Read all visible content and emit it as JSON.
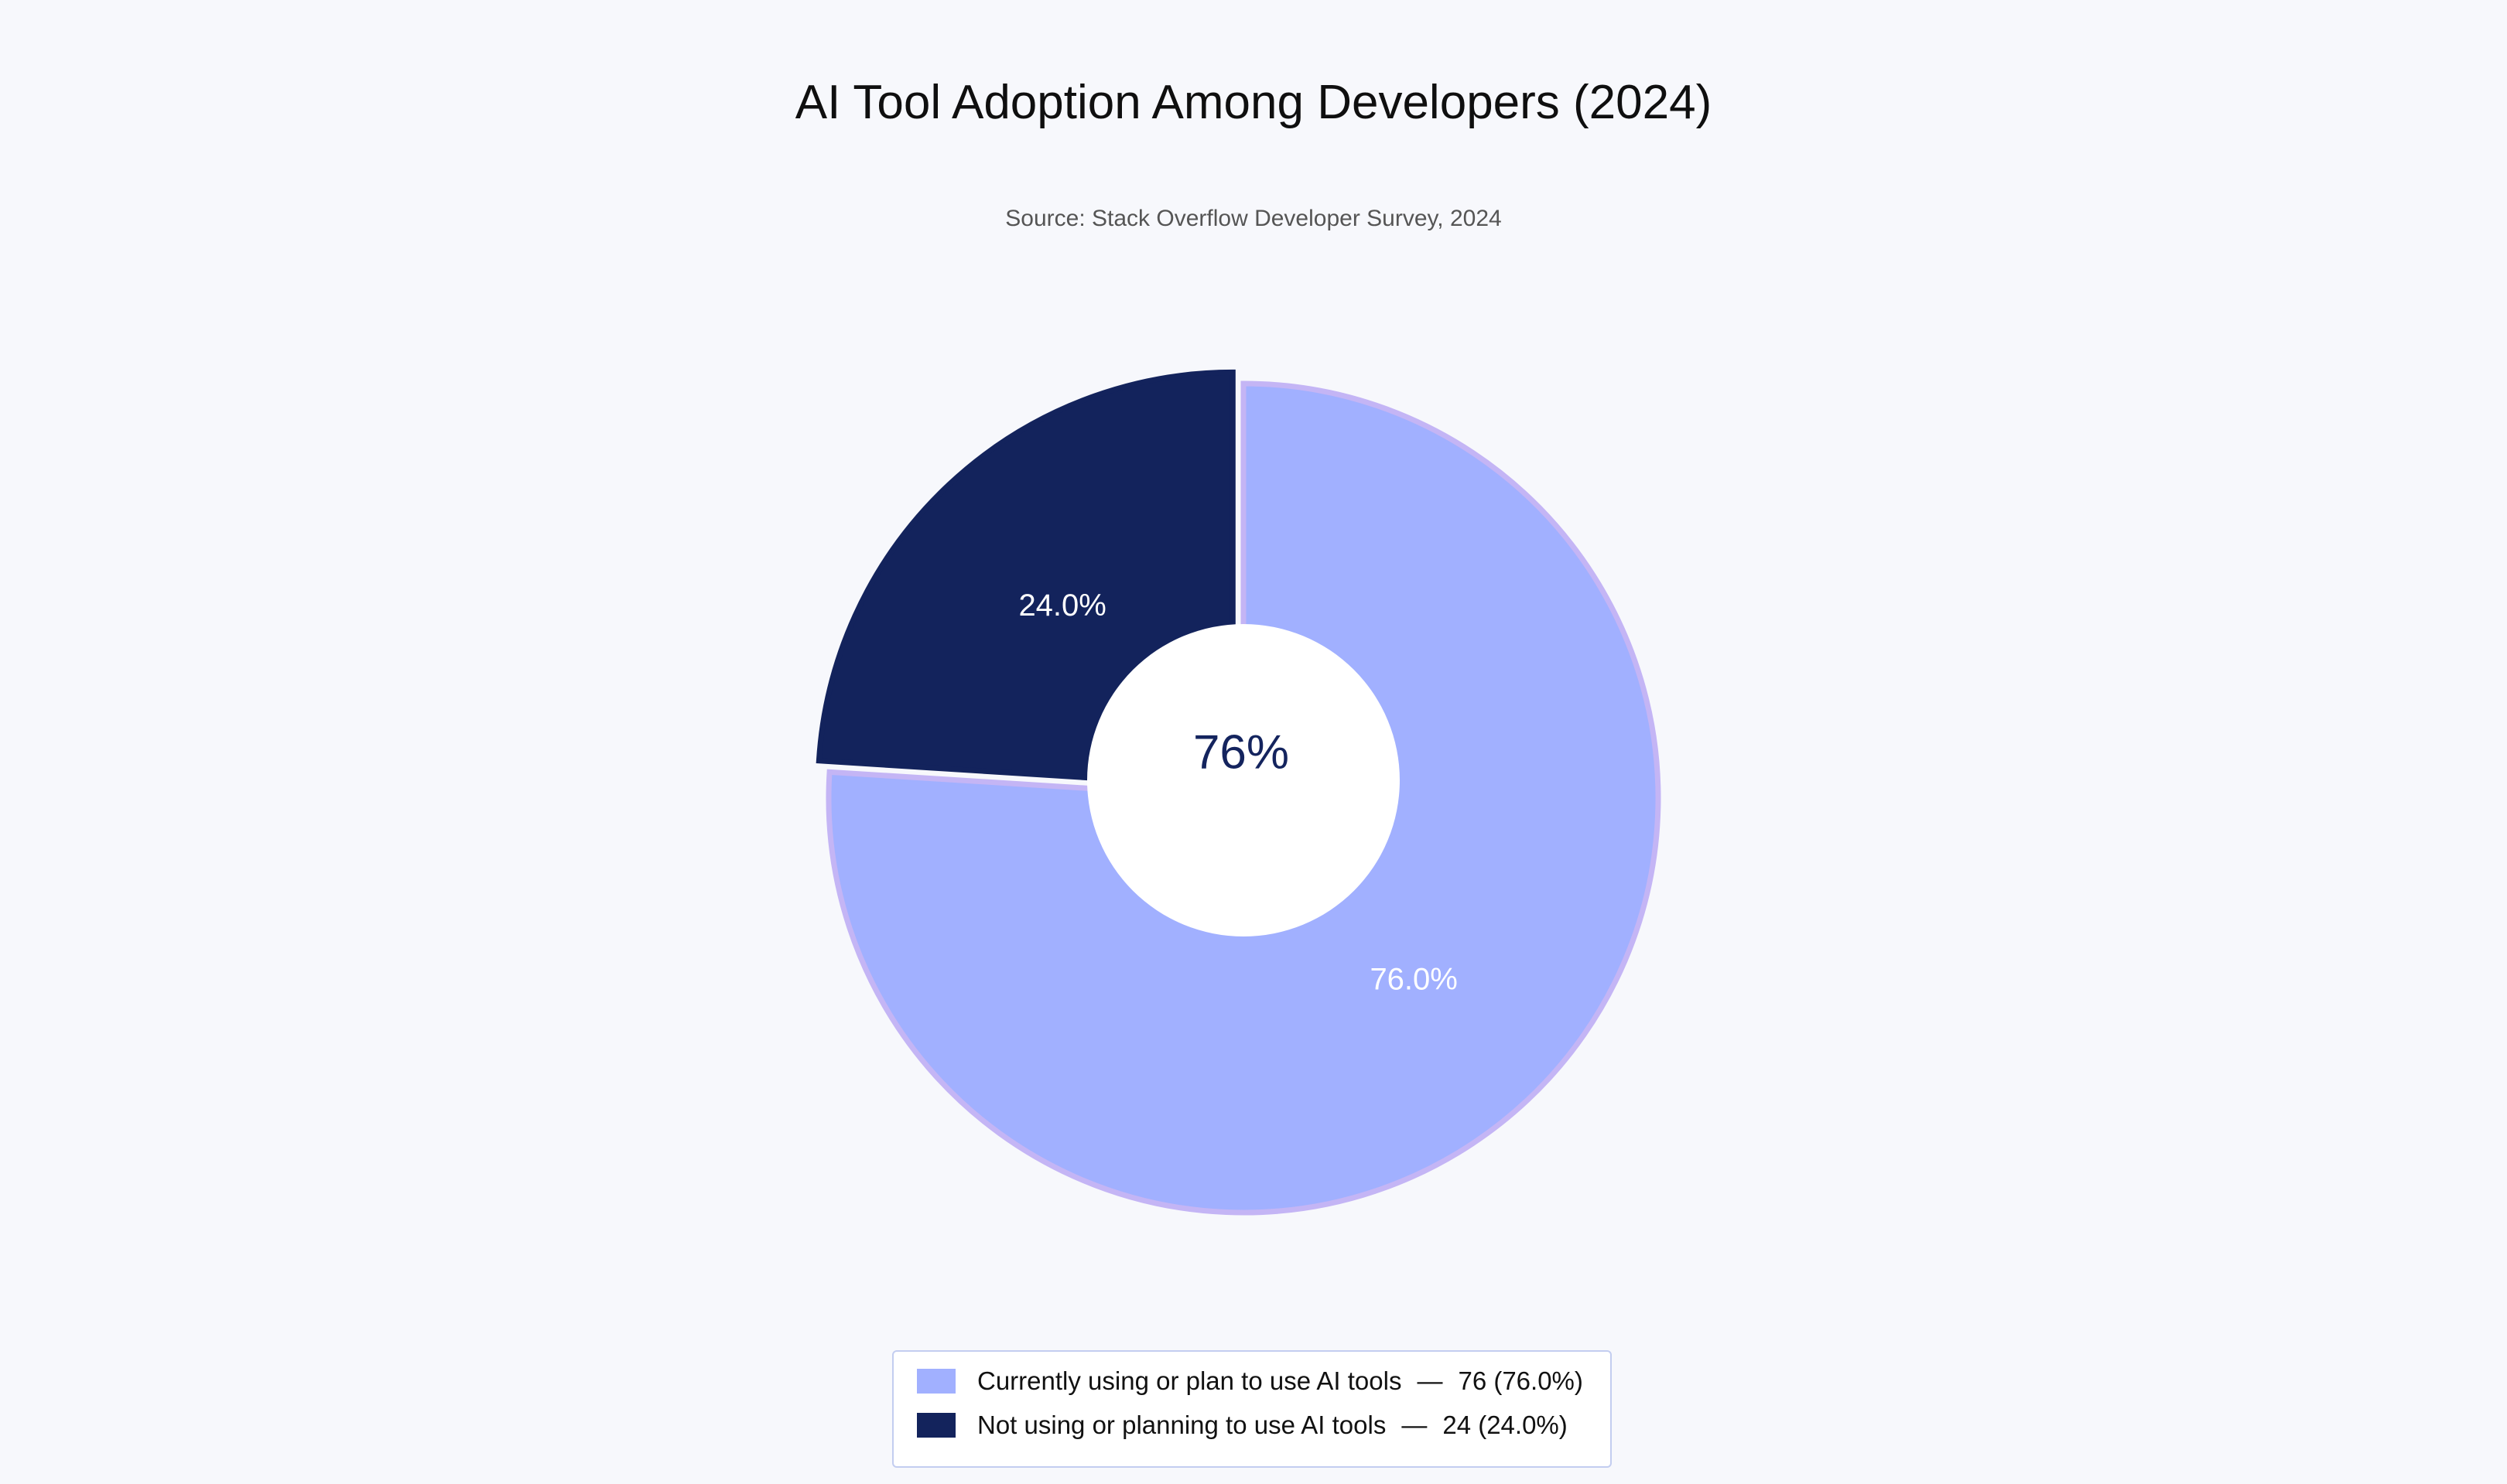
{
  "chart_data": {
    "type": "pie",
    "title": "AI Tool Adoption Among Developers (2024)",
    "subtitle": "Source: Stack Overflow Developer Survey, 2024",
    "center_label": "76%",
    "legend_position": "bottom-center",
    "slices": [
      {
        "label": "Currently using or plan to use AI tools",
        "value": 76,
        "percent_label": "76.0%",
        "legend_value": "76 (76.0%)",
        "color": "#a1b0ff",
        "edge_color": "#c4b5f5",
        "exploded": false
      },
      {
        "label": "Not using or planning to use AI tools",
        "value": 24,
        "percent_label": "24.0%",
        "legend_value": "24 (24.0%)",
        "color": "#13235c",
        "edge_color": "#13235c",
        "exploded": true
      }
    ],
    "hole": "donut",
    "start_angle": "top",
    "direction": "clockwise"
  }
}
